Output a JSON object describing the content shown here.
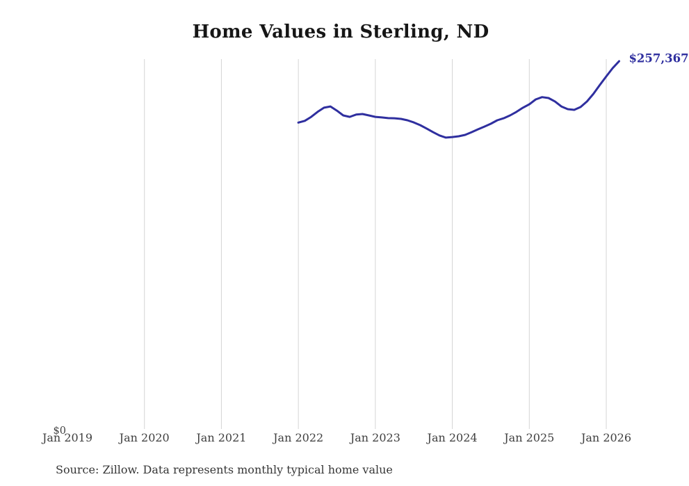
{
  "page": {
    "background": "#ffffff"
  },
  "header": {
    "title": "Home Values in Sterling, ND"
  },
  "footer": {
    "source_note": "Source: Zillow. Data represents monthly typical home value"
  },
  "colors": {
    "background": "#ffffff",
    "line": "#2f2f9f",
    "end_label": "#2f2f9f",
    "grid": "#d4d4d4",
    "title": "#161616",
    "axis_text": "#3f3f3f",
    "source_text": "#363636"
  },
  "chart_data": {
    "type": "line",
    "title": "Home Values in Sterling, ND",
    "xlabel": "",
    "ylabel": "",
    "legend": "none",
    "grid": "vertical-only",
    "y_axis": {
      "zero_label": "$0",
      "ylim": [
        0,
        265000
      ]
    },
    "end_label": "$257,367",
    "final_value": 257367,
    "x_ticks": [
      {
        "label": "Jan 2019",
        "gridline": false
      },
      {
        "label": "Jan 2020",
        "gridline": true
      },
      {
        "label": "Jan 2021",
        "gridline": true
      },
      {
        "label": "Jan 2022",
        "gridline": true
      },
      {
        "label": "Jan 2023",
        "gridline": true
      },
      {
        "label": "Jan 2024",
        "gridline": true
      },
      {
        "label": "Jan 2025",
        "gridline": true
      },
      {
        "label": "Jan 2026",
        "gridline": true
      }
    ],
    "series": [
      {
        "name": "Monthly typical home value",
        "x": [
          "2022-01",
          "2022-02",
          "2022-03",
          "2022-04",
          "2022-05",
          "2022-06",
          "2022-07",
          "2022-08",
          "2022-09",
          "2022-10",
          "2022-11",
          "2022-12",
          "2023-01",
          "2023-02",
          "2023-03",
          "2023-04",
          "2023-05",
          "2023-06",
          "2023-07",
          "2023-08",
          "2023-09",
          "2023-10",
          "2023-11",
          "2023-12",
          "2024-01",
          "2024-02",
          "2024-03",
          "2024-04",
          "2024-05",
          "2024-06",
          "2024-07",
          "2024-08",
          "2024-09",
          "2024-10",
          "2024-11",
          "2024-12",
          "2025-01",
          "2025-02",
          "2025-03",
          "2025-04",
          "2025-05",
          "2025-06",
          "2025-07",
          "2025-08",
          "2025-09",
          "2025-10",
          "2025-11",
          "2025-12",
          "2026-01",
          "2026-02",
          "2026-03"
        ],
        "values": [
          214400,
          215600,
          218400,
          221900,
          224800,
          225700,
          222800,
          219400,
          218400,
          220000,
          220400,
          219400,
          218400,
          218000,
          217500,
          217400,
          217000,
          216000,
          214500,
          212600,
          210200,
          207700,
          205400,
          203900,
          204300,
          204800,
          205800,
          207700,
          209700,
          211600,
          213600,
          216000,
          217400,
          219400,
          221900,
          224800,
          227200,
          230600,
          232200,
          231600,
          229200,
          225700,
          223800,
          223300,
          225300,
          229200,
          234500,
          240800,
          246700,
          252500,
          257367
        ]
      }
    ]
  }
}
